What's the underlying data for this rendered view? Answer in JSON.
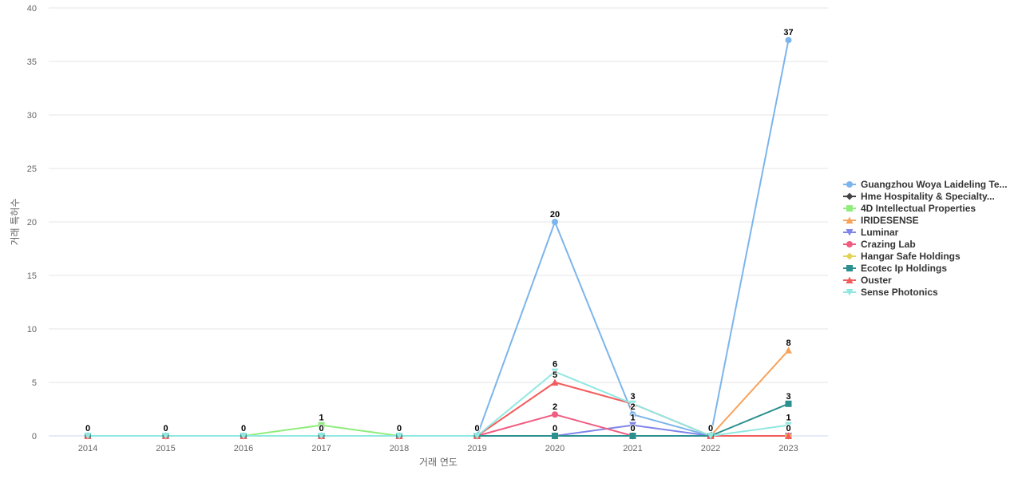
{
  "chart_data": {
    "type": "line",
    "title": "",
    "xlabel": "거래 연도",
    "ylabel": "거래 특허수",
    "ylim": [
      0,
      40
    ],
    "yticks": [
      0,
      5,
      10,
      15,
      20,
      25,
      30,
      35,
      40
    ],
    "categories": [
      "2014",
      "2015",
      "2016",
      "2017",
      "2018",
      "2019",
      "2020",
      "2021",
      "2022",
      "2023"
    ],
    "grid": true,
    "legend_position": "right",
    "series": [
      {
        "name": "Guangzhou Woya Laideling Te...",
        "color": "#7cb5ec",
        "marker": "circle",
        "values": [
          0,
          0,
          0,
          0,
          0,
          0,
          20,
          2,
          0,
          37
        ]
      },
      {
        "name": "Hme Hospitality & Specialty...",
        "color": "#434348",
        "marker": "diamond",
        "values": [
          0,
          0,
          0,
          0,
          0,
          0,
          0,
          0,
          0,
          0
        ]
      },
      {
        "name": "4D Intellectual Properties",
        "color": "#90ed7d",
        "marker": "square",
        "values": [
          0,
          0,
          0,
          1,
          0,
          0,
          0,
          0,
          0,
          0
        ]
      },
      {
        "name": "IRIDESENSE",
        "color": "#f7a35c",
        "marker": "triangle",
        "values": [
          0,
          0,
          0,
          0,
          0,
          0,
          0,
          0,
          0,
          8
        ]
      },
      {
        "name": "Luminar",
        "color": "#8085e9",
        "marker": "triangle-down",
        "values": [
          0,
          0,
          0,
          0,
          0,
          0,
          0,
          1,
          0,
          0
        ]
      },
      {
        "name": "Crazing Lab",
        "color": "#f15c80",
        "marker": "circle",
        "values": [
          0,
          0,
          0,
          0,
          0,
          0,
          2,
          0,
          0,
          0
        ]
      },
      {
        "name": "Hangar Safe Holdings",
        "color": "#e4d354",
        "marker": "diamond",
        "values": [
          0,
          0,
          0,
          0,
          0,
          0,
          0,
          0,
          0,
          0
        ]
      },
      {
        "name": "Ecotec Ip Holdings",
        "color": "#2b908f",
        "marker": "square",
        "values": [
          0,
          0,
          0,
          0,
          0,
          0,
          0,
          0,
          0,
          3
        ]
      },
      {
        "name": "Ouster",
        "color": "#f45b5b",
        "marker": "triangle",
        "values": [
          0,
          0,
          0,
          0,
          0,
          0,
          5,
          3,
          0,
          0
        ]
      },
      {
        "name": "Sense Photonics",
        "color": "#91e8e1",
        "marker": "triangle-down",
        "values": [
          0,
          0,
          0,
          0,
          0,
          0,
          6,
          3,
          0,
          1
        ]
      }
    ],
    "data_labels": [
      {
        "x": "2014",
        "text": "0"
      },
      {
        "x": "2015",
        "text": "0"
      },
      {
        "x": "2016",
        "text": "0"
      },
      {
        "x": "2017",
        "text": "1"
      },
      {
        "x": "2017",
        "text": "0"
      },
      {
        "x": "2018",
        "text": "0"
      },
      {
        "x": "2019",
        "text": "0"
      },
      {
        "x": "2020",
        "text": "20"
      },
      {
        "x": "2020",
        "text": "6"
      },
      {
        "x": "2020",
        "text": "5"
      },
      {
        "x": "2020",
        "text": "2"
      },
      {
        "x": "2020",
        "text": "0"
      },
      {
        "x": "2021",
        "text": "3"
      },
      {
        "x": "2021",
        "text": "2"
      },
      {
        "x": "2021",
        "text": "1"
      },
      {
        "x": "2021",
        "text": "0"
      },
      {
        "x": "2022",
        "text": "0"
      },
      {
        "x": "2023",
        "text": "37"
      },
      {
        "x": "2023",
        "text": "8"
      },
      {
        "x": "2023",
        "text": "3"
      },
      {
        "x": "2023",
        "text": "1"
      },
      {
        "x": "2023",
        "text": "0"
      }
    ]
  }
}
